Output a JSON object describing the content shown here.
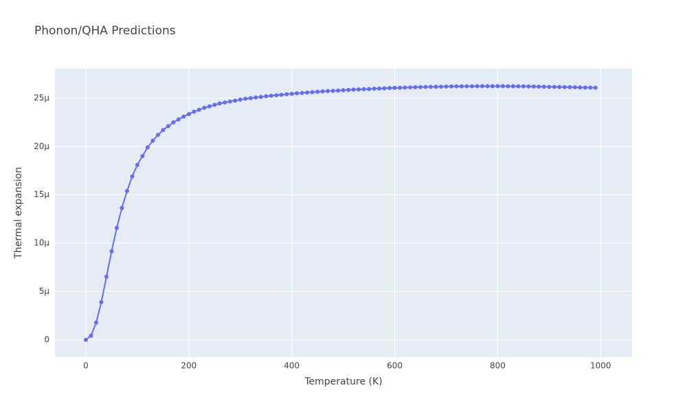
{
  "chart_data": {
    "type": "line",
    "title": "Phonon/QHA Predictions",
    "x_label": "Temperature (K)",
    "y_label": "Thermal expansion",
    "x": [
      0,
      10,
      20,
      30,
      40,
      50,
      60,
      70,
      80,
      90,
      100,
      110,
      120,
      130,
      140,
      150,
      160,
      170,
      180,
      190,
      200,
      210,
      220,
      230,
      240,
      250,
      260,
      270,
      280,
      290,
      300,
      310,
      320,
      330,
      340,
      350,
      360,
      370,
      380,
      390,
      400,
      410,
      420,
      430,
      440,
      450,
      460,
      470,
      480,
      490,
      500,
      510,
      520,
      530,
      540,
      550,
      560,
      570,
      580,
      590,
      600,
      610,
      620,
      630,
      640,
      650,
      660,
      670,
      680,
      690,
      700,
      710,
      720,
      730,
      740,
      750,
      760,
      770,
      780,
      790,
      800,
      810,
      820,
      830,
      840,
      850,
      860,
      870,
      880,
      890,
      900,
      910,
      920,
      930,
      940,
      950,
      960,
      970,
      980,
      990
    ],
    "values": [
      0,
      4.3e-07,
      1.78e-06,
      3.9e-06,
      6.53e-06,
      9.16e-06,
      1.158e-05,
      1.364e-05,
      1.54e-05,
      1.69e-05,
      1.81e-05,
      1.9e-05,
      1.99e-05,
      2.06e-05,
      2.12e-05,
      2.17e-05,
      2.21e-05,
      2.25e-05,
      2.28e-05,
      2.31e-05,
      2.335e-05,
      2.36e-05,
      2.38e-05,
      2.4e-05,
      2.415e-05,
      2.43e-05,
      2.445e-05,
      2.455e-05,
      2.465e-05,
      2.475e-05,
      2.485e-05,
      2.493e-05,
      2.5e-05,
      2.507e-05,
      2.513e-05,
      2.52e-05,
      2.525e-05,
      2.53e-05,
      2.535e-05,
      2.54e-05,
      2.545e-05,
      2.55e-05,
      2.554e-05,
      2.558e-05,
      2.562e-05,
      2.566e-05,
      2.57e-05,
      2.573e-05,
      2.576e-05,
      2.579e-05,
      2.582e-05,
      2.585e-05,
      2.588e-05,
      2.59e-05,
      2.593e-05,
      2.595e-05,
      2.598e-05,
      2.6e-05,
      2.602e-05,
      2.604e-05,
      2.606e-05,
      2.608e-05,
      2.61e-05,
      2.611e-05,
      2.613e-05,
      2.614e-05,
      2.616e-05,
      2.617e-05,
      2.618e-05,
      2.619e-05,
      2.62e-05,
      2.621e-05,
      2.622e-05,
      2.622e-05,
      2.623e-05,
      2.623e-05,
      2.624e-05,
      2.624e-05,
      2.624e-05,
      2.624e-05,
      2.624e-05,
      2.624e-05,
      2.623e-05,
      2.623e-05,
      2.622e-05,
      2.622e-05,
      2.621e-05,
      2.62e-05,
      2.619e-05,
      2.618e-05,
      2.617e-05,
      2.616e-05,
      2.615e-05,
      2.614e-05,
      2.613e-05,
      2.612e-05,
      2.611e-05,
      2.61e-05,
      2.609e-05,
      2.608e-05
    ],
    "color": "#636efa",
    "xlim": [
      -60,
      1061
    ],
    "xticks": [
      0,
      200,
      400,
      600,
      800,
      1000
    ],
    "ylim": [
      -1.78e-06,
      2.805e-05
    ],
    "yticks": [
      0,
      {
        "value": 5e-06,
        "label": "5µ"
      },
      {
        "value": 1e-05,
        "label": "10µ"
      },
      {
        "value": 1.5e-05,
        "label": "15µ"
      },
      {
        "value": 2e-05,
        "label": "20µ"
      },
      {
        "value": 2.5e-05,
        "label": "25µ"
      }
    ],
    "grid": true
  }
}
